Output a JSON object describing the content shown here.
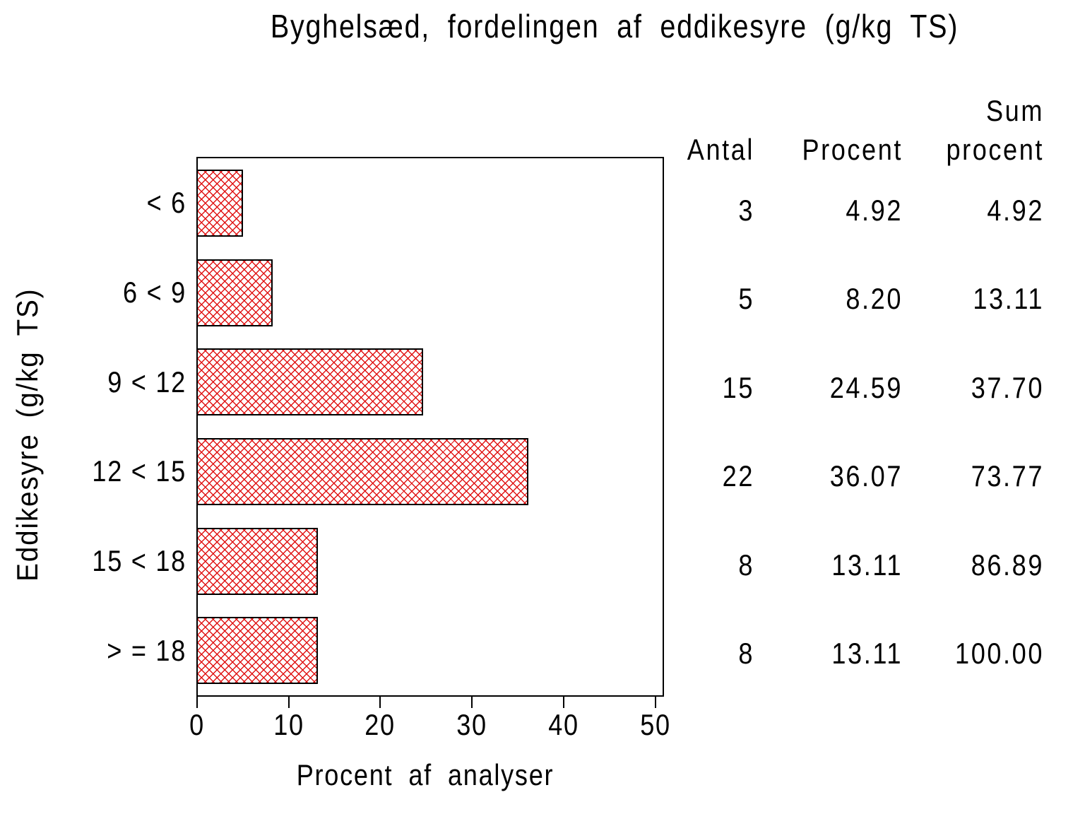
{
  "title": "Byghelsæd, fordelingen af eddikesyre (g/kg TS)",
  "axes": {
    "x_label": "Procent af analyser",
    "y_label": "Eddikesyre (g/kg TS)",
    "x_ticks": [
      0,
      10,
      20,
      30,
      40,
      50
    ],
    "x_max": 50
  },
  "table": {
    "col_antal": "Antal",
    "col_procent": "Procent",
    "col_sum_line1": "Sum",
    "col_sum_line2": "procent"
  },
  "colors": {
    "hatch_red": "#e01414",
    "outline": "#000000",
    "background": "#ffffff"
  },
  "chart_data": {
    "type": "bar",
    "orientation": "horizontal",
    "title": "Byghelsæd, fordelingen af eddikesyre (g/kg TS)",
    "categories": [
      "< 6",
      "6 < 9",
      "9 < 12",
      "12 < 15",
      "15 < 18",
      "> = 18"
    ],
    "series": [
      {
        "name": "Procent",
        "values": [
          4.92,
          8.2,
          24.59,
          36.07,
          13.11,
          13.11
        ]
      },
      {
        "name": "Antal",
        "values": [
          3,
          5,
          15,
          22,
          8,
          8
        ]
      },
      {
        "name": "Sum procent",
        "values": [
          4.92,
          13.11,
          37.7,
          73.77,
          86.89,
          100.0
        ]
      }
    ],
    "xlabel": "Procent af analyser",
    "ylabel": "Eddikesyre (g/kg TS)",
    "xlim": [
      0,
      50
    ],
    "x_ticks": [
      0,
      10,
      20,
      30,
      40,
      50
    ],
    "grid": false,
    "legend": "none",
    "bar_style": "red diagonal crosshatch fill with thin black outline on white"
  }
}
